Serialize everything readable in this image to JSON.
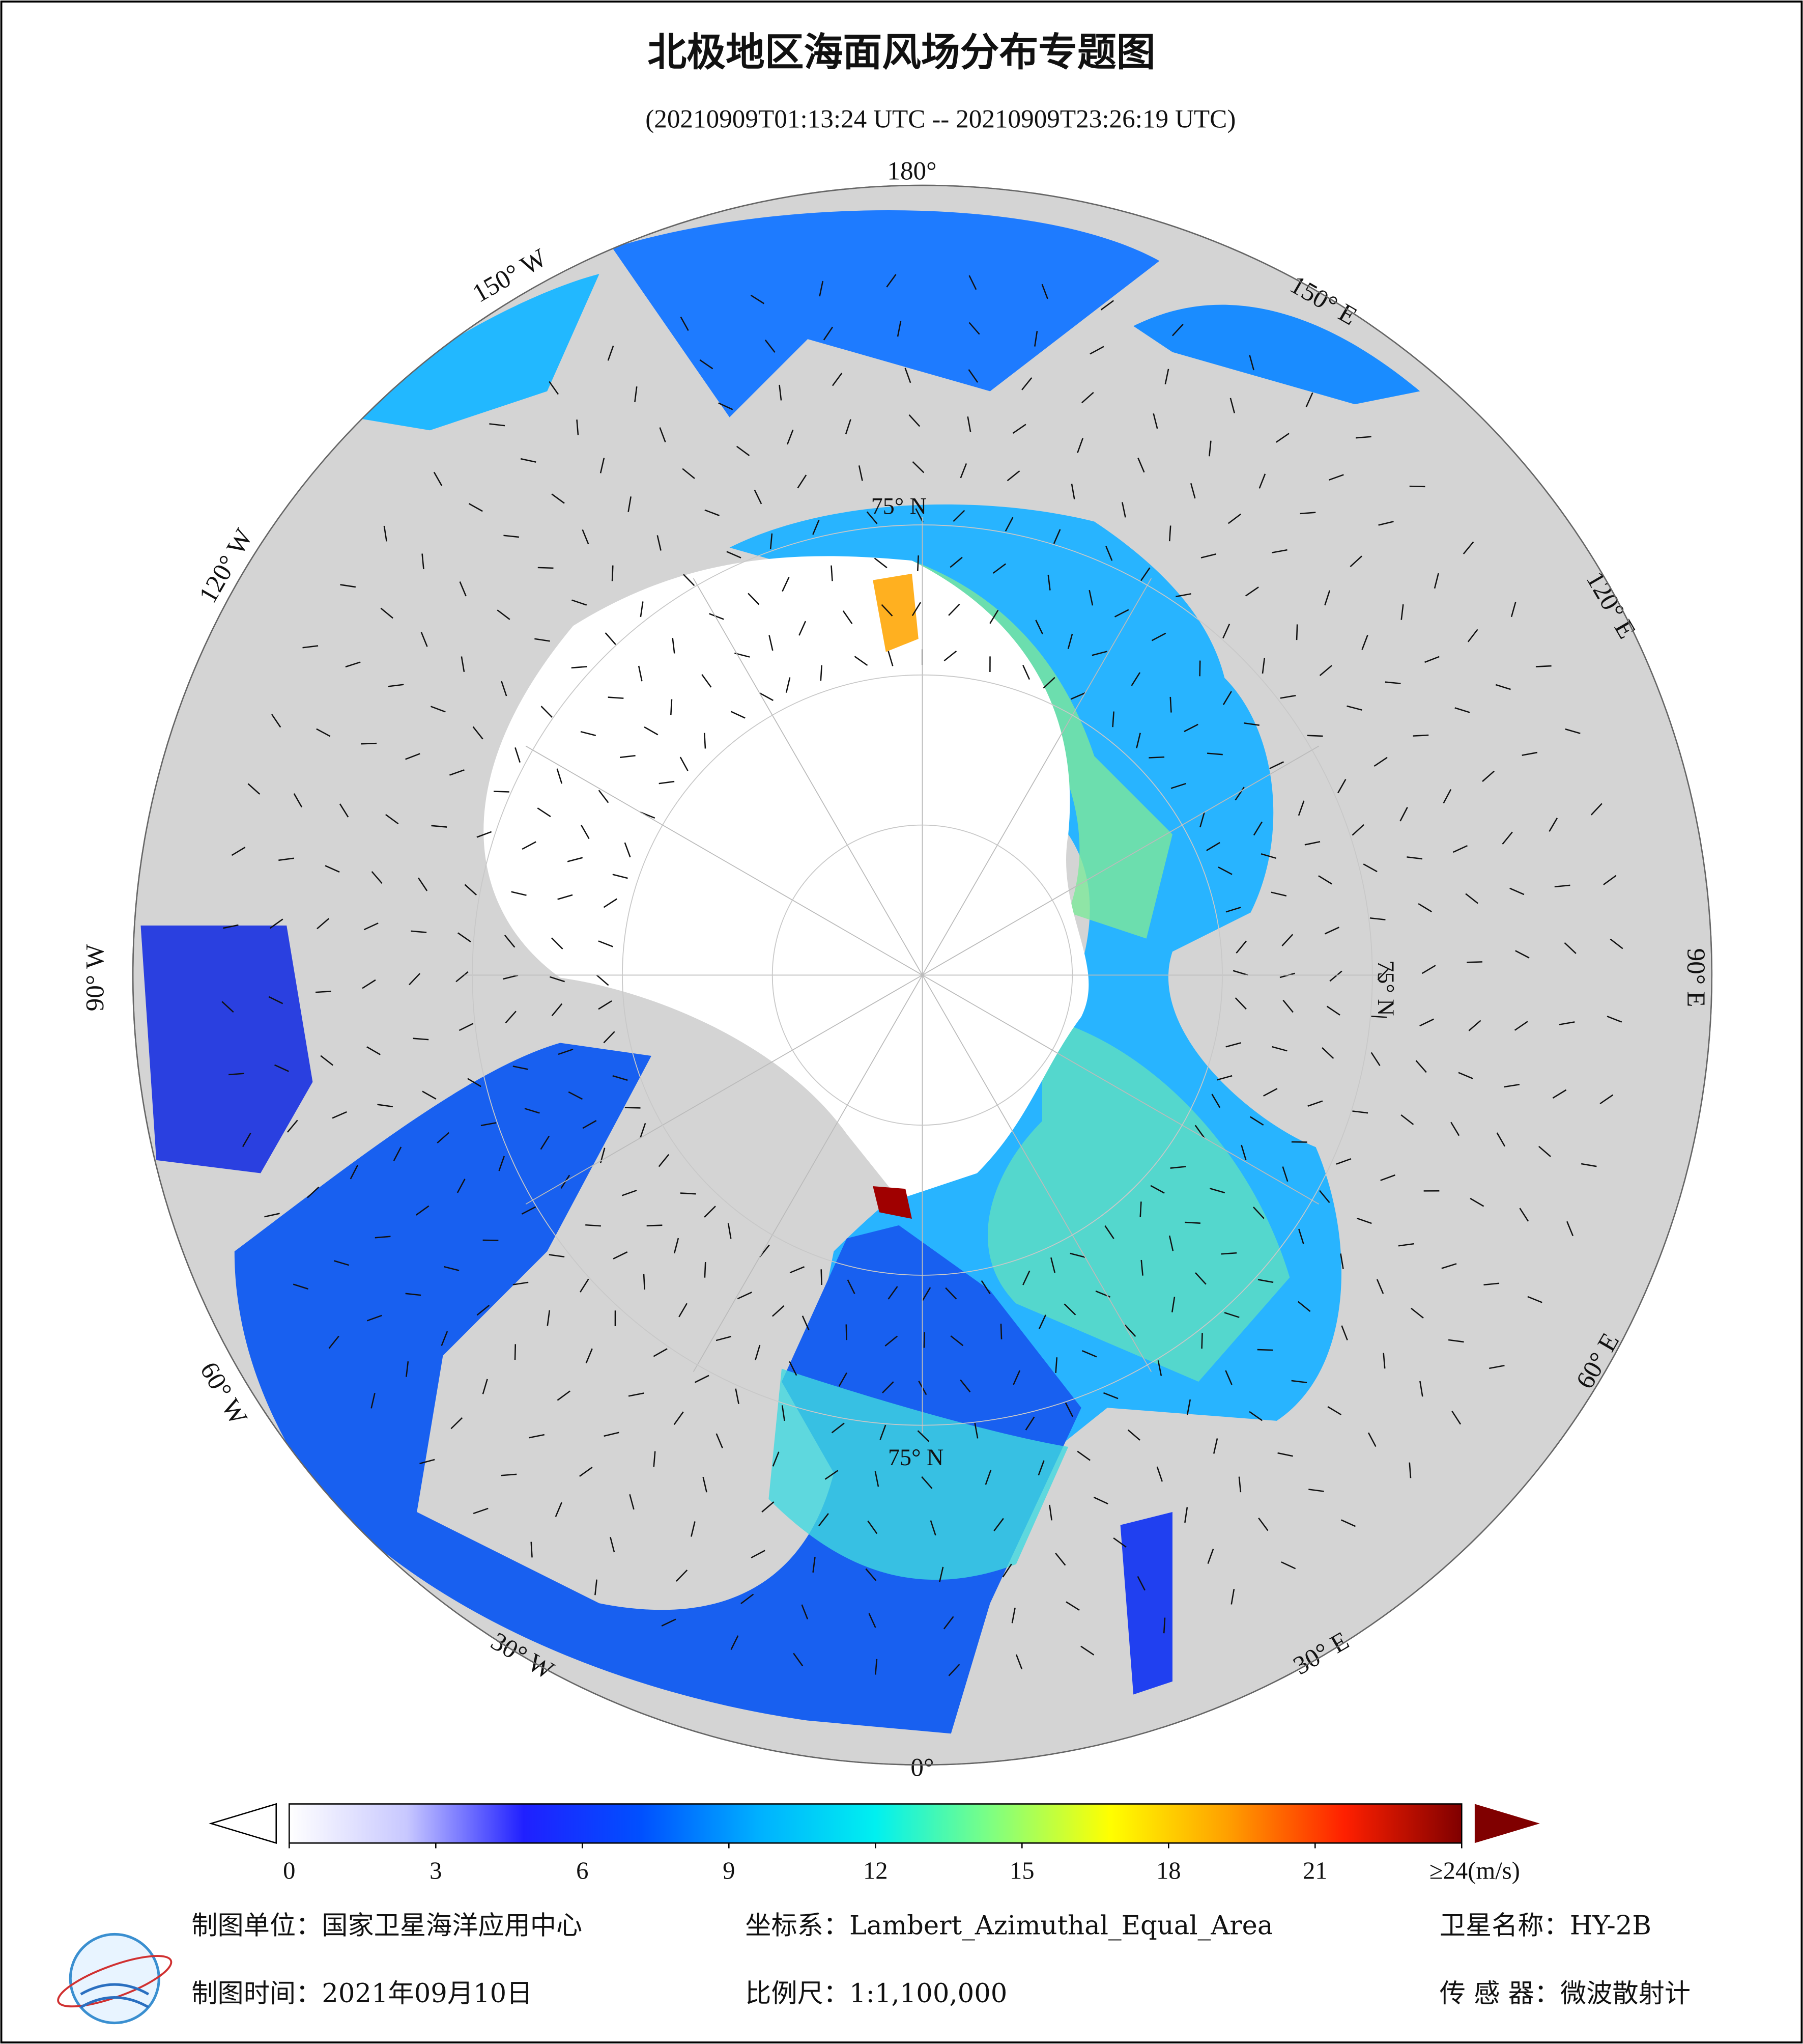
{
  "header": {
    "title": "北极地区海面风场分布专题图",
    "subtitle": "(20210909T01:13:24 UTC -- 20210909T23:26:19 UTC)"
  },
  "map": {
    "lon_labels": [
      "180°",
      "150° E",
      "120° E",
      "90° E",
      "60° E",
      "30° E",
      "0°",
      "30° W",
      "60° W",
      "90° W",
      "120° W",
      "150° W"
    ],
    "lat_labels": [
      "75° N",
      "75° N",
      "75° N"
    ]
  },
  "colorbar": {
    "lim": [
      0,
      24
    ],
    "ticks": [
      0,
      3,
      6,
      9,
      12,
      15,
      18,
      21,
      {
        "value": 24,
        "label": "≥24(m/s)"
      }
    ],
    "colors": [
      "#ffffff",
      "#c8c8ff",
      "#2020ff",
      "#0050ff",
      "#00b0ff",
      "#00f0f0",
      "#80ff80",
      "#ffff00",
      "#ffa000",
      "#ff2000",
      "#800000"
    ]
  },
  "footer": {
    "unit": "制图单位：国家卫星海洋应用中心",
    "crs": "坐标系：Lambert_Azimuthal_Equal_Area",
    "satellite": "卫星名称：HY-2B",
    "date": "制图时间：2021年09月10日",
    "scale": "比例尺：1:1,100,000",
    "sensor": "传 感 器：微波散射计"
  }
}
